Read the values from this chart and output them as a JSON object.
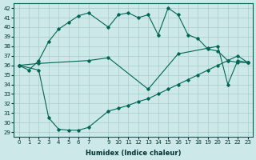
{
  "xlabel": "Humidex (Indice chaleur)",
  "bg_color": "#cce8e8",
  "grid_color": "#aacccc",
  "line_color": "#006655",
  "xlim": [
    -0.5,
    23.5
  ],
  "ylim": [
    28.5,
    42.5
  ],
  "xticks": [
    0,
    1,
    2,
    3,
    4,
    5,
    6,
    7,
    9,
    10,
    11,
    12,
    13,
    14,
    15,
    16,
    17,
    18,
    19,
    20,
    21,
    22,
    23
  ],
  "yticks": [
    29,
    30,
    31,
    32,
    33,
    34,
    35,
    36,
    37,
    38,
    39,
    40,
    41,
    42
  ],
  "series": [
    {
      "x": [
        0,
        1,
        2,
        3,
        4,
        5,
        6,
        7,
        9,
        10,
        11,
        12,
        13,
        14,
        15,
        16,
        17,
        18,
        19,
        20,
        21,
        22,
        23
      ],
      "y": [
        36,
        35.5,
        36.5,
        38.5,
        39.8,
        40.5,
        41.2,
        41.5,
        40.0,
        41.3,
        41.5,
        41.0,
        41.3,
        39.2,
        42.0,
        41.3,
        39.2,
        38.8,
        37.7,
        37.5,
        36.5,
        36.3,
        36.3
      ]
    },
    {
      "x": [
        0,
        2,
        7,
        9,
        13,
        16,
        19,
        20,
        21,
        22,
        23
      ],
      "y": [
        36,
        36.2,
        36.5,
        36.8,
        33.5,
        37.2,
        37.8,
        38.0,
        34.0,
        36.5,
        36.3
      ]
    },
    {
      "x": [
        0,
        2,
        3,
        4,
        5,
        6,
        7,
        9,
        10,
        11,
        12,
        13,
        14,
        15,
        16,
        17,
        18,
        19,
        20,
        21,
        22,
        23
      ],
      "y": [
        36,
        35.5,
        30.5,
        29.3,
        29.2,
        29.2,
        29.5,
        31.2,
        31.5,
        31.8,
        32.2,
        32.5,
        33.0,
        33.5,
        34.0,
        34.5,
        35.0,
        35.5,
        36.0,
        36.5,
        37.0,
        36.3
      ]
    }
  ]
}
